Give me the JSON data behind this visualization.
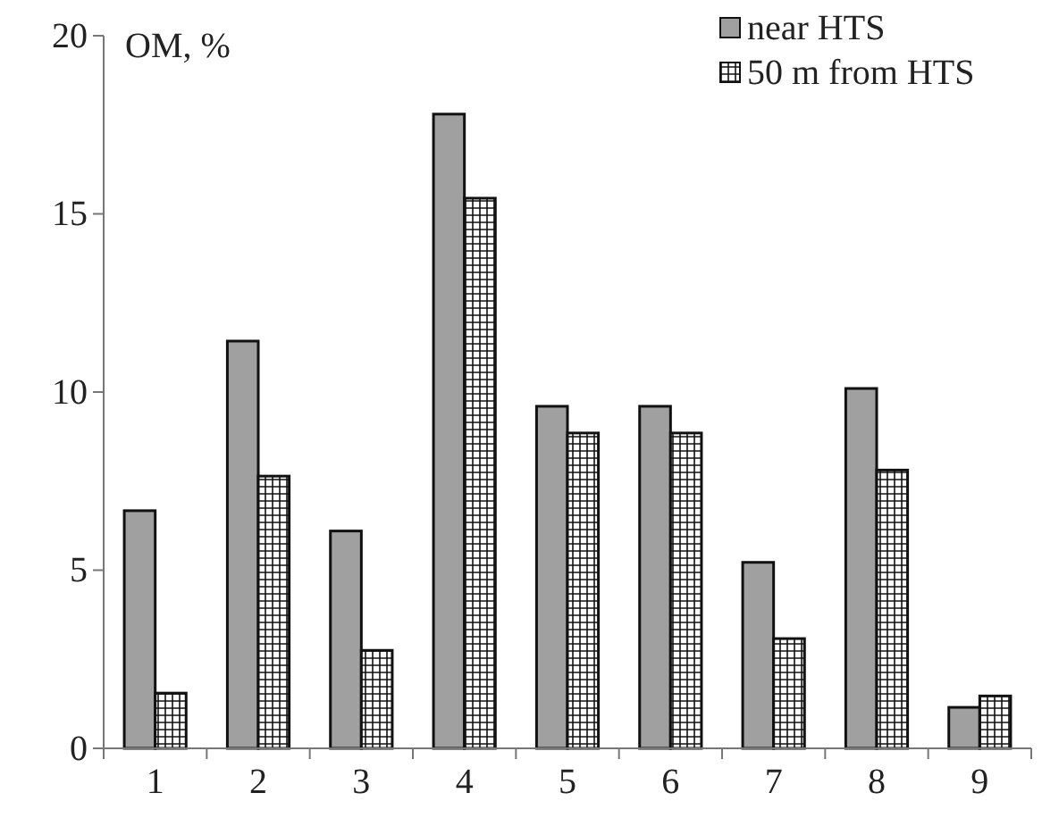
{
  "chart_data": {
    "type": "bar",
    "ylabel": "OM, %",
    "categories": [
      "1",
      "2",
      "3",
      "4",
      "5",
      "6",
      "7",
      "8",
      "9"
    ],
    "series": [
      {
        "name": "near HTS",
        "color": "#a0a0a0",
        "values": [
          6.67,
          11.43,
          6.1,
          17.8,
          9.6,
          9.6,
          5.22,
          10.1,
          1.15
        ]
      },
      {
        "name": "50 m from HTS",
        "color": "#111111",
        "values": [
          1.55,
          7.64,
          2.75,
          15.44,
          8.85,
          8.85,
          3.08,
          7.81,
          1.47
        ]
      }
    ],
    "ylim": [
      0,
      20
    ],
    "yticks": [
      0,
      5,
      10,
      15,
      20
    ],
    "grid": false,
    "legend": "top right"
  }
}
